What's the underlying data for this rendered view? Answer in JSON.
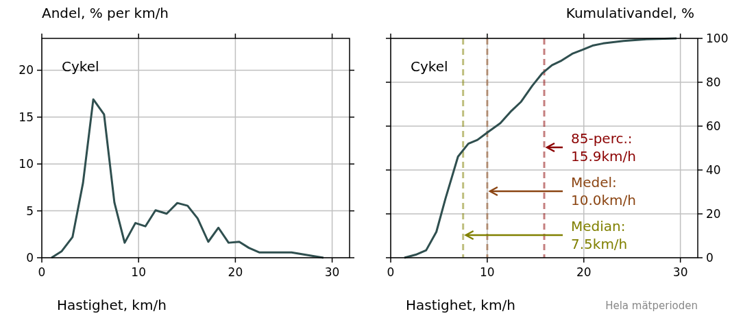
{
  "chart_data": [
    {
      "type": "line",
      "ylabel": "Andel, % per km/h",
      "xlabel": "Hastighet, km/h",
      "annotations": [
        "Cykel"
      ],
      "xlim": [
        0,
        31.8
      ],
      "xticks": [
        0,
        10,
        20,
        30
      ],
      "ylim": [
        0,
        23.4
      ],
      "yticks": [
        0,
        5,
        10,
        15,
        20
      ],
      "grid": true,
      "series": [
        {
          "color": "#2f4f4f",
          "x": [
            1.0,
            2.06,
            3.17,
            4.26,
            5.32,
            6.43,
            7.5,
            8.56,
            9.67,
            10.7,
            11.75,
            12.9,
            14.0,
            15.06,
            16.1,
            17.2,
            18.25,
            19.3,
            20.4,
            21.4,
            22.5,
            25.8,
            29.1
          ],
          "values": [
            0,
            0.7,
            2.2,
            8.0,
            16.9,
            15.3,
            5.9,
            1.6,
            3.7,
            3.35,
            5.06,
            4.7,
            5.84,
            5.55,
            4.2,
            1.7,
            3.2,
            1.6,
            1.7,
            1.05,
            0.56,
            0.56,
            0
          ]
        }
      ]
    },
    {
      "type": "line",
      "y2label": "Kumulativandel, %",
      "xlabel": "Hastighet, km/h",
      "annotations": [
        "Cykel",
        "Hela mätperioden"
      ],
      "xlim": [
        0,
        31.8
      ],
      "xticks": [
        0,
        10,
        20,
        30
      ],
      "y2lim": [
        0,
        100
      ],
      "y2ticks": [
        0,
        20,
        40,
        60,
        80,
        100
      ],
      "grid": true,
      "series": [
        {
          "color": "#2f4f4f",
          "axis": "y2",
          "x": [
            1.42,
            2.6,
            3.67,
            4.73,
            5.67,
            6.97,
            8.04,
            8.98,
            10.16,
            11.35,
            12.4,
            13.5,
            14.66,
            15.72,
            16.7,
            17.7,
            18.8,
            19.86,
            20.9,
            22.0,
            24.1,
            26.5,
            29.6
          ],
          "values": [
            0,
            1.4,
            3.4,
            11.8,
            26.9,
            46.1,
            52,
            53.7,
            57.6,
            61.3,
            66.5,
            71.1,
            78.4,
            84.2,
            87.8,
            89.9,
            93,
            94.8,
            96.7,
            97.7,
            98.8,
            99.6,
            100
          ]
        }
      ],
      "ref_lines": [
        {
          "axis": "x",
          "value": 7.5,
          "label": "Median:\n7.5km/h",
          "color": "#808000",
          "line_style": "dashed"
        },
        {
          "axis": "x",
          "value": 10.0,
          "label": "Medel:\n10.0km/h",
          "color": "#8b4513",
          "line_style": "dashed"
        },
        {
          "axis": "x",
          "value": 15.9,
          "label": "85-perc.:\n15.9km/h",
          "color": "#8b0000",
          "line_style": "dashed"
        }
      ]
    }
  ]
}
